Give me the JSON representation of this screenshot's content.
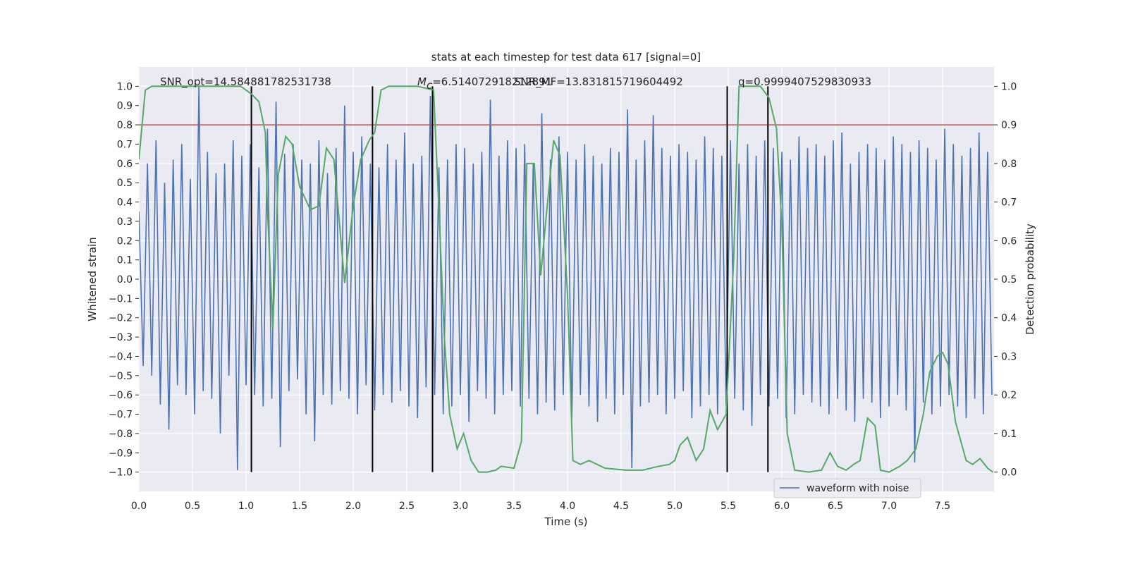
{
  "chart_data": {
    "type": "line",
    "title": "stats at each timestep for test data 617 [signal=0]",
    "xlabel": "Time (s)",
    "ylabel": "Whitened strain",
    "y2label": "Detection probability",
    "xlim": [
      0,
      7.98
    ],
    "ylim": [
      -1.1,
      1.1
    ],
    "y2lim": [
      -0.05,
      1.05
    ],
    "xticks": [
      {
        "value": 0,
        "label": "0.0"
      },
      0.5,
      {
        "value": 1,
        "label": "1.0"
      },
      1.5,
      {
        "value": 2,
        "label": "2.0"
      },
      2.5,
      {
        "value": 3,
        "label": "3.0"
      },
      3.5,
      {
        "value": 4,
        "label": "4.0"
      },
      4.5,
      {
        "value": 5,
        "label": "5.0"
      },
      5.5,
      {
        "value": 6,
        "label": "6.0"
      },
      6.5,
      {
        "value": 7,
        "label": "7.0"
      },
      7.5
    ],
    "yticks": [
      {
        "value": -1,
        "label": "−1.0"
      },
      {
        "value": -0.9,
        "label": "−0.9"
      },
      {
        "value": -0.8,
        "label": "−0.8"
      },
      {
        "value": -0.7,
        "label": "−0.7"
      },
      {
        "value": -0.6,
        "label": "−0.6"
      },
      {
        "value": -0.5,
        "label": "−0.5"
      },
      {
        "value": -0.4,
        "label": "−0.4"
      },
      {
        "value": -0.3,
        "label": "−0.3"
      },
      {
        "value": -0.2,
        "label": "−0.2"
      },
      {
        "value": -0.1,
        "label": "−0.1"
      },
      {
        "value": 0,
        "label": "0.0"
      },
      0.1,
      0.2,
      0.3,
      0.4,
      0.5,
      0.6,
      0.7,
      0.8,
      0.9,
      {
        "value": 1,
        "label": "1.0"
      }
    ],
    "y2ticks": [
      {
        "value": 0,
        "label": "0.0"
      },
      0.1,
      0.2,
      0.3,
      0.4,
      0.5,
      0.6,
      0.7,
      0.8,
      0.9,
      {
        "value": 1,
        "label": "1.0"
      }
    ],
    "grid": true,
    "legend": "lower right",
    "series": [
      {
        "name": "waveform with noise",
        "color": "#4c72b0",
        "x": [
          0,
          0.04,
          0.08,
          0.12,
          0.16,
          0.2,
          0.24,
          0.28,
          0.32,
          0.36,
          0.4,
          0.44,
          0.48,
          0.52,
          0.56,
          0.6,
          0.64,
          0.68,
          0.72,
          0.76,
          0.8,
          0.84,
          0.88,
          0.92,
          0.96,
          1,
          1.04,
          1.08,
          1.12,
          1.16,
          1.2,
          1.24,
          1.28,
          1.32,
          1.36,
          1.4,
          1.44,
          1.48,
          1.52,
          1.56,
          1.6,
          1.64,
          1.68,
          1.72,
          1.76,
          1.8,
          1.84,
          1.88,
          1.92,
          1.96,
          2,
          2.04,
          2.08,
          2.12,
          2.16,
          2.2,
          2.24,
          2.28,
          2.32,
          2.36,
          2.4,
          2.44,
          2.48,
          2.52,
          2.56,
          2.6,
          2.64,
          2.68,
          2.72,
          2.76,
          2.8,
          2.84,
          2.88,
          2.92,
          2.96,
          3,
          3.04,
          3.08,
          3.12,
          3.16,
          3.2,
          3.24,
          3.28,
          3.32,
          3.36,
          3.4,
          3.44,
          3.48,
          3.52,
          3.56,
          3.6,
          3.64,
          3.68,
          3.72,
          3.76,
          3.8,
          3.84,
          3.88,
          3.92,
          3.96,
          4,
          4.04,
          4.08,
          4.12,
          4.16,
          4.2,
          4.24,
          4.28,
          4.32,
          4.36,
          4.4,
          4.44,
          4.48,
          4.52,
          4.56,
          4.6,
          4.64,
          4.68,
          4.72,
          4.76,
          4.8,
          4.84,
          4.88,
          4.92,
          4.96,
          5,
          5.04,
          5.08,
          5.12,
          5.16,
          5.2,
          5.24,
          5.28,
          5.32,
          5.36,
          5.4,
          5.44,
          5.48,
          5.52,
          5.56,
          5.6,
          5.64,
          5.68,
          5.72,
          5.76,
          5.8,
          5.84,
          5.88,
          5.92,
          5.96,
          6,
          6.04,
          6.08,
          6.12,
          6.16,
          6.2,
          6.24,
          6.28,
          6.32,
          6.36,
          6.4,
          6.44,
          6.48,
          6.52,
          6.56,
          6.6,
          6.64,
          6.68,
          6.72,
          6.76,
          6.8,
          6.84,
          6.88,
          6.92,
          6.96,
          7,
          7.04,
          7.08,
          7.12,
          7.16,
          7.2,
          7.24,
          7.28,
          7.32,
          7.36,
          7.4,
          7.44,
          7.48,
          7.52,
          7.56,
          7.6,
          7.64,
          7.68,
          7.72,
          7.76,
          7.8,
          7.84,
          7.88,
          7.92,
          7.96
        ],
        "values": [
          0.35,
          -0.45,
          0.6,
          -0.5,
          0.72,
          -0.65,
          0.5,
          -0.78,
          0.62,
          -0.55,
          0.7,
          -0.6,
          0.52,
          -0.7,
          1.0,
          -0.58,
          0.66,
          -0.62,
          0.55,
          -0.8,
          0.6,
          -0.5,
          0.72,
          -0.99,
          0.64,
          -0.55,
          0.7,
          -0.6,
          0.58,
          -0.66,
          0.78,
          -0.62,
          0.92,
          -0.87,
          0.65,
          -0.58,
          0.7,
          -0.52,
          0.62,
          -0.7,
          0.6,
          -0.84,
          0.72,
          -0.6,
          0.55,
          -0.65,
          0.68,
          -0.58,
          0.9,
          -0.62,
          0.66,
          -0.7,
          0.74,
          -0.55,
          0.6,
          -0.68,
          0.58,
          -0.6,
          0.7,
          -0.64,
          0.62,
          -0.58,
          0.76,
          -0.66,
          0.6,
          -0.72,
          0.64,
          -0.56,
          0.95,
          -0.6,
          0.58,
          -0.7,
          0.62,
          -0.66,
          0.7,
          -0.6,
          0.68,
          -0.74,
          0.6,
          -0.58,
          0.66,
          -0.62,
          0.93,
          -0.7,
          0.64,
          -0.6,
          0.72,
          -0.58,
          0.68,
          -0.66,
          0.7,
          -0.62,
          0.6,
          -0.7,
          0.86,
          -0.64,
          0.62,
          -0.68,
          0.74,
          -0.6,
          0.66,
          -0.72,
          0.62,
          -0.6,
          0.7,
          -0.66,
          0.64,
          -0.74,
          0.6,
          -0.62,
          0.68,
          -0.7,
          0.66,
          -0.6,
          0.88,
          -0.98,
          0.62,
          -0.66,
          0.72,
          -0.64,
          0.85,
          -0.6,
          0.68,
          -0.7,
          0.64,
          -0.62,
          0.7,
          -0.58,
          0.66,
          -0.72,
          0.62,
          -0.66,
          0.74,
          -0.6,
          0.68,
          -0.7,
          0.64,
          -0.66,
          0.72,
          -0.62,
          0.6,
          -0.68,
          0.7,
          -0.76,
          0.64,
          -0.6,
          0.72,
          -0.66,
          0.68,
          -0.62,
          0.66,
          -0.72,
          0.62,
          -0.7,
          0.74,
          -0.6,
          0.68,
          -0.64,
          0.7,
          -0.66,
          0.64,
          -0.7,
          0.72,
          -0.62,
          0.76,
          -0.68,
          0.6,
          -0.74,
          0.66,
          -0.62,
          0.7,
          -0.64,
          0.68,
          -0.72,
          0.62,
          -0.66,
          0.74,
          -0.6,
          0.7,
          -0.68,
          0.66,
          -0.95,
          0.72,
          -0.64,
          0.68,
          -0.7,
          0.62,
          -0.66,
          0.78,
          -0.6,
          0.7,
          -0.66,
          0.64,
          -0.72,
          0.68,
          -0.62,
          0.76,
          -0.7,
          0.66,
          -0.6
        ]
      },
      {
        "color": "#55a868",
        "axis": "y2",
        "x": [
          0,
          0.06,
          0.12,
          0.5,
          0.95,
          1.05,
          1.12,
          1.18,
          1.2,
          1.25,
          1.3,
          1.37,
          1.43,
          1.5,
          1.6,
          1.68,
          1.75,
          1.82,
          1.92,
          2.0,
          2.07,
          2.15,
          2.2,
          2.26,
          2.33,
          2.6,
          2.75,
          2.8,
          2.85,
          2.9,
          2.97,
          3.03,
          3.1,
          3.17,
          3.25,
          3.33,
          3.38,
          3.5,
          3.57,
          3.62,
          3.69,
          3.75,
          3.8,
          3.87,
          3.93,
          4.0,
          4.05,
          4.12,
          4.2,
          4.35,
          4.55,
          4.7,
          4.85,
          4.95,
          5.0,
          5.05,
          5.12,
          5.2,
          5.27,
          5.33,
          5.4,
          5.48,
          5.55,
          5.6,
          5.7,
          5.8,
          5.88,
          5.95,
          6.0,
          6.05,
          6.12,
          6.25,
          6.37,
          6.45,
          6.52,
          6.6,
          6.67,
          6.73,
          6.8,
          6.87,
          6.92,
          7.0,
          7.1,
          7.17,
          7.25,
          7.32,
          7.38,
          7.45,
          7.5,
          7.55,
          7.62,
          7.72,
          7.78,
          7.85,
          7.92,
          7.97
        ],
        "values": [
          0.81,
          0.99,
          1.0,
          1.0,
          1.0,
          0.98,
          0.96,
          0.88,
          0.68,
          0.37,
          0.77,
          0.87,
          0.85,
          0.74,
          0.68,
          0.69,
          0.84,
          0.81,
          0.49,
          0.69,
          0.81,
          0.86,
          0.88,
          0.99,
          1.0,
          1.0,
          0.99,
          0.68,
          0.35,
          0.15,
          0.06,
          0.1,
          0.03,
          0.0,
          0.0,
          0.005,
          0.015,
          0.01,
          0.08,
          0.8,
          0.8,
          0.51,
          0.66,
          0.86,
          0.82,
          0.46,
          0.03,
          0.02,
          0.03,
          0.01,
          0.005,
          0.005,
          0.015,
          0.02,
          0.03,
          0.07,
          0.09,
          0.03,
          0.06,
          0.16,
          0.11,
          0.15,
          0.55,
          1.0,
          1.0,
          1.0,
          0.97,
          0.89,
          0.64,
          0.1,
          0.005,
          0.0,
          0.005,
          0.05,
          0.015,
          0.005,
          0.02,
          0.03,
          0.14,
          0.12,
          0.005,
          0.0,
          0.015,
          0.03,
          0.06,
          0.15,
          0.26,
          0.3,
          0.31,
          0.28,
          0.13,
          0.03,
          0.02,
          0.035,
          0.01,
          0.0
        ]
      }
    ],
    "hlines": [
      {
        "y": 0.9,
        "axis": "y2",
        "color": "#c44e52"
      }
    ],
    "vlines": {
      "x": [
        1.05,
        2.18,
        2.74,
        5.49,
        5.87
      ],
      "ymin": -1,
      "ymax": 1,
      "color": "#000000"
    },
    "annotations": [
      {
        "text": "SNR_opt=14.584881782531738"
      },
      {
        "symbol": "M",
        "subscript": "c",
        "text": "=6.514072918212891"
      },
      {
        "text": "SNR_MF=13.831815719604492"
      },
      {
        "text": "q=0.9999407529830933"
      }
    ]
  }
}
